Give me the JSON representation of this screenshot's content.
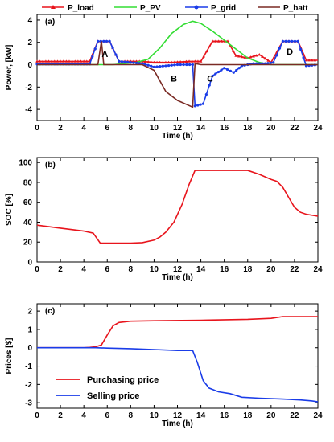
{
  "chart_data": [
    {
      "type": "line",
      "panel_label": "(a)",
      "xlabel": "Time (h)",
      "ylabel": "Power, [kW]",
      "xlim": [
        0,
        24
      ],
      "ylim": [
        -5,
        4.5
      ],
      "xticks": [
        0,
        2,
        4,
        6,
        8,
        10,
        12,
        14,
        16,
        18,
        20,
        22,
        24
      ],
      "yticks": [
        -4,
        -2,
        0,
        2,
        4
      ],
      "grid": false,
      "legend_position": "top, above plot",
      "annotations": [
        {
          "text": "A",
          "x": 5.8,
          "y": 0.7
        },
        {
          "text": "B",
          "x": 11.7,
          "y": -1.5
        },
        {
          "text": "C",
          "x": 14.8,
          "y": -1.5
        },
        {
          "text": "D",
          "x": 21.6,
          "y": 0.9
        }
      ],
      "series": [
        {
          "name": "P_load",
          "color": "#e8141c",
          "marker": "triangle",
          "points": [
            [
              0,
              0.3
            ],
            [
              4.5,
              0.3
            ],
            [
              5.2,
              2.1
            ],
            [
              6.2,
              2.1
            ],
            [
              7,
              0.3
            ],
            [
              9,
              0.3
            ],
            [
              10,
              0.2
            ],
            [
              11.5,
              0.2
            ],
            [
              13,
              0.3
            ],
            [
              14,
              0.3
            ],
            [
              15,
              2.1
            ],
            [
              16.3,
              2.1
            ],
            [
              17,
              0.8
            ],
            [
              18,
              0.6
            ],
            [
              19,
              0.9
            ],
            [
              20,
              0.2
            ],
            [
              21,
              2.1
            ],
            [
              22.3,
              2.1
            ],
            [
              23,
              0.4
            ],
            [
              24,
              0.4
            ]
          ]
        },
        {
          "name": "P_PV",
          "color": "#33dd33",
          "marker": "none",
          "points": [
            [
              0,
              0
            ],
            [
              6.5,
              0
            ],
            [
              7.5,
              0.1
            ],
            [
              8.5,
              0.2
            ],
            [
              9.5,
              0.5
            ],
            [
              10.5,
              1.5
            ],
            [
              11.5,
              2.8
            ],
            [
              12.5,
              3.6
            ],
            [
              13.3,
              3.9
            ],
            [
              14,
              3.7
            ],
            [
              15,
              3.0
            ],
            [
              16,
              2.2
            ],
            [
              17,
              1.4
            ],
            [
              18,
              0.6
            ],
            [
              19,
              0.2
            ],
            [
              20,
              0
            ],
            [
              24,
              0
            ]
          ]
        },
        {
          "name": "P_grid",
          "color": "#1a3ce8",
          "marker": "circle",
          "points": [
            [
              0,
              0.05
            ],
            [
              4.5,
              0.05
            ],
            [
              5.2,
              2.1
            ],
            [
              6.2,
              2.1
            ],
            [
              7,
              0.3
            ],
            [
              9,
              0.1
            ],
            [
              10,
              -0.2
            ],
            [
              11,
              -0.1
            ],
            [
              12,
              0
            ],
            [
              13.3,
              0
            ],
            [
              13.5,
              -3.7
            ],
            [
              14.2,
              -3.5
            ],
            [
              15,
              -1.0
            ],
            [
              16,
              -0.3
            ],
            [
              16.8,
              -0.7
            ],
            [
              17.5,
              -0.1
            ],
            [
              18.5,
              0.1
            ],
            [
              19.5,
              0.1
            ],
            [
              20.2,
              0.2
            ],
            [
              21,
              2.1
            ],
            [
              22.3,
              2.1
            ],
            [
              23,
              -0.1
            ],
            [
              24,
              0
            ]
          ]
        },
        {
          "name": "P_batt",
          "color": "#7a2a24",
          "marker": "none",
          "points": [
            [
              0,
              0
            ],
            [
              5.2,
              0
            ],
            [
              5.5,
              2.1
            ],
            [
              5.7,
              0
            ],
            [
              9,
              0
            ],
            [
              10,
              -0.5
            ],
            [
              11,
              -2.4
            ],
            [
              12,
              -3.2
            ],
            [
              13.3,
              -3.8
            ],
            [
              13.5,
              0.1
            ],
            [
              14,
              0
            ],
            [
              24,
              0
            ]
          ]
        }
      ]
    },
    {
      "type": "line",
      "panel_label": "(b)",
      "xlabel": "Time (h)",
      "ylabel": "SOC [%]",
      "xlim": [
        0,
        24
      ],
      "ylim": [
        0,
        105
      ],
      "xticks": [
        0,
        2,
        4,
        6,
        8,
        10,
        12,
        14,
        16,
        18,
        20,
        22,
        24
      ],
      "yticks": [
        0,
        20,
        40,
        60,
        80,
        100
      ],
      "grid": false,
      "series": [
        {
          "color": "#e8141c",
          "points": [
            [
              0,
              37
            ],
            [
              2,
              34
            ],
            [
              4,
              31
            ],
            [
              4.8,
              29
            ],
            [
              5.4,
              19
            ],
            [
              6,
              19
            ],
            [
              8,
              19
            ],
            [
              9,
              19.5
            ],
            [
              10,
              22
            ],
            [
              10.5,
              25
            ],
            [
              11,
              30
            ],
            [
              11.7,
              40
            ],
            [
              12.4,
              58
            ],
            [
              13,
              78
            ],
            [
              13.5,
              92
            ],
            [
              14,
              92
            ],
            [
              16,
              92
            ],
            [
              18,
              92
            ],
            [
              19,
              88
            ],
            [
              20,
              83
            ],
            [
              20.5,
              81
            ],
            [
              21,
              75
            ],
            [
              21.5,
              65
            ],
            [
              22,
              55
            ],
            [
              22.5,
              50
            ],
            [
              23,
              48
            ],
            [
              24,
              46
            ]
          ]
        }
      ]
    },
    {
      "type": "line",
      "panel_label": "(c)",
      "xlabel": "Time (h)",
      "ylabel": "Prices [$]",
      "xlim": [
        0,
        24
      ],
      "ylim": [
        -3.3,
        2.4
      ],
      "xticks": [
        0,
        2,
        4,
        6,
        8,
        10,
        12,
        14,
        16,
        18,
        20,
        22,
        24
      ],
      "yticks": [
        -3,
        -2,
        -1,
        0,
        1,
        2
      ],
      "grid": false,
      "legend_position": "lower-left",
      "series": [
        {
          "name": "Purchasing price",
          "color": "#e8141c",
          "points": [
            [
              0,
              0
            ],
            [
              4,
              0
            ],
            [
              4.5,
              0.02
            ],
            [
              5,
              0.05
            ],
            [
              5.5,
              0.15
            ],
            [
              6,
              0.7
            ],
            [
              6.5,
              1.2
            ],
            [
              7,
              1.38
            ],
            [
              8,
              1.45
            ],
            [
              10,
              1.47
            ],
            [
              14,
              1.5
            ],
            [
              18,
              1.55
            ],
            [
              20,
              1.6
            ],
            [
              21,
              1.7
            ],
            [
              24,
              1.7
            ]
          ]
        },
        {
          "name": "Selling price",
          "color": "#1a3ce8",
          "points": [
            [
              0,
              0
            ],
            [
              4,
              0
            ],
            [
              5,
              0
            ],
            [
              6,
              -0.02
            ],
            [
              8,
              -0.05
            ],
            [
              10,
              -0.1
            ],
            [
              12,
              -0.15
            ],
            [
              13.3,
              -0.15
            ],
            [
              13.7,
              -0.8
            ],
            [
              14.2,
              -1.8
            ],
            [
              14.7,
              -2.2
            ],
            [
              15.5,
              -2.4
            ],
            [
              16.5,
              -2.5
            ],
            [
              17.5,
              -2.7
            ],
            [
              19,
              -2.75
            ],
            [
              21,
              -2.8
            ],
            [
              22.5,
              -2.85
            ],
            [
              23.5,
              -2.9
            ],
            [
              24,
              -2.95
            ]
          ]
        }
      ]
    }
  ]
}
